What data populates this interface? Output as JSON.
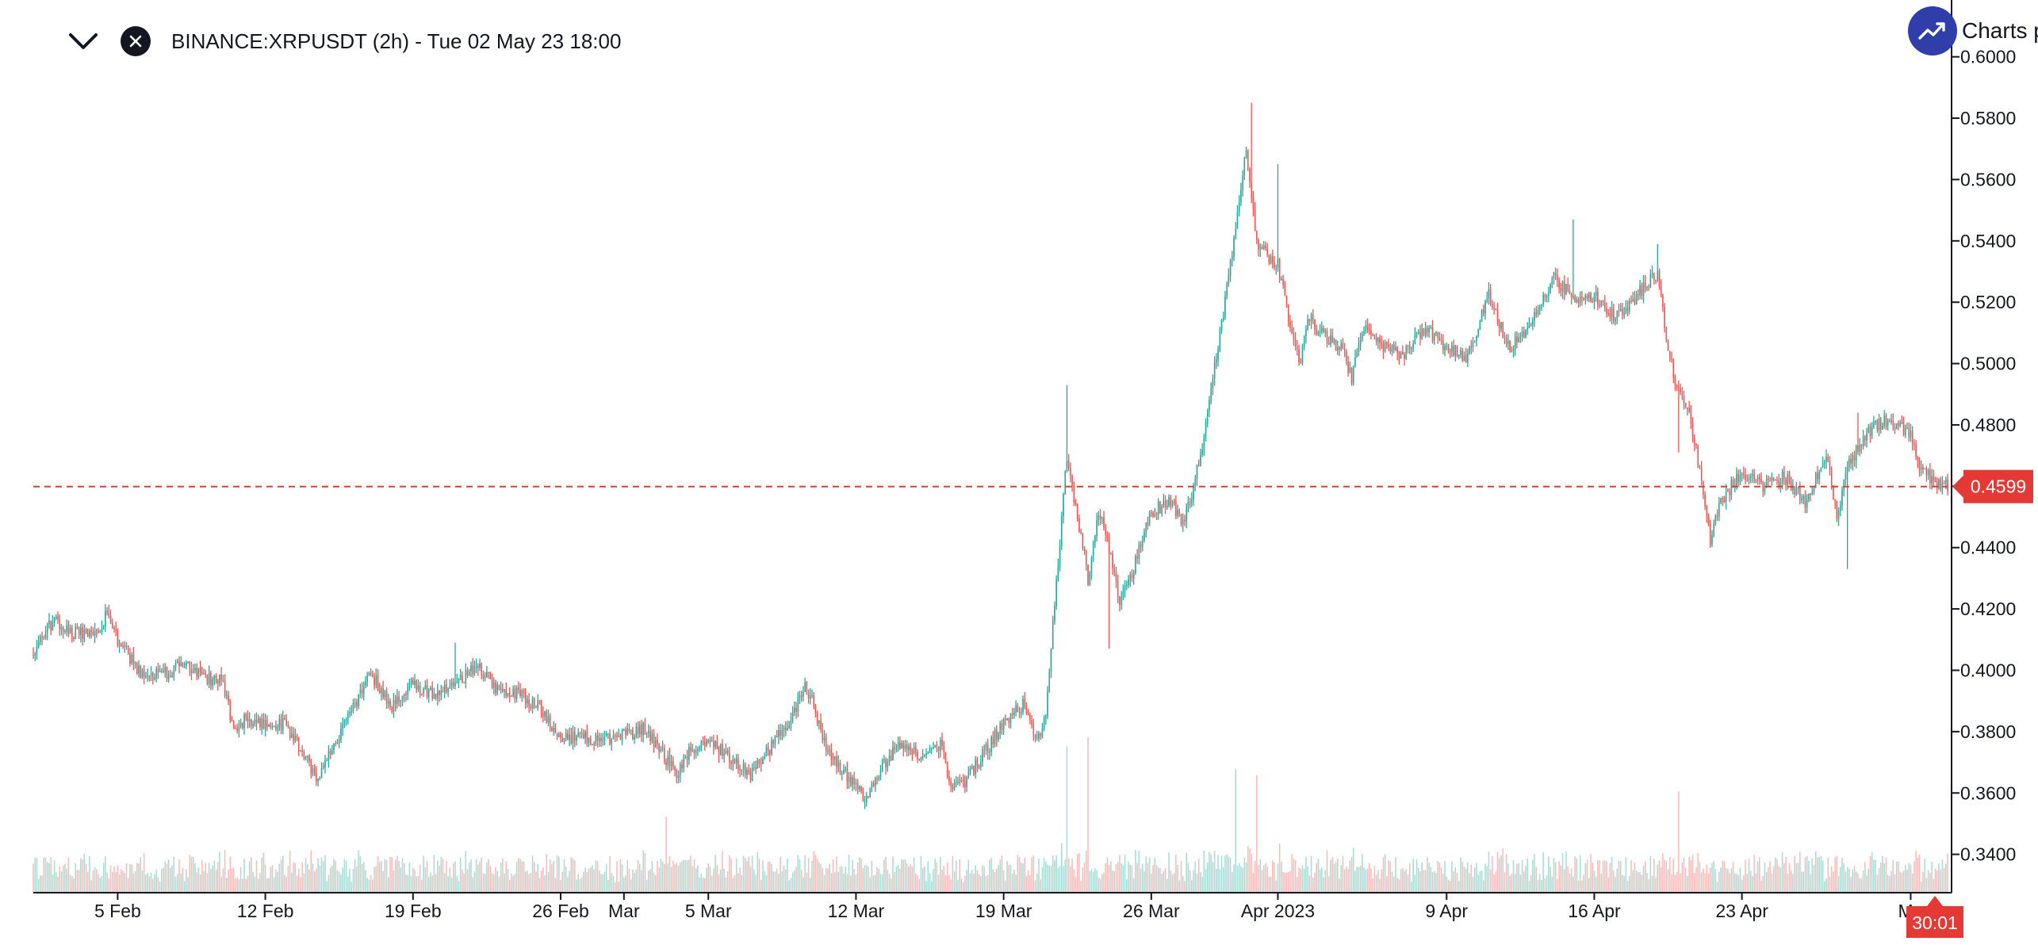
{
  "header": {
    "collapse_icon": "chevron-down-icon",
    "close_icon": "close-icon",
    "symbol_title": "BINANCE:XRPUSDT (2h) - Tue 02 May 23 18:00"
  },
  "brand": {
    "icon": "trend-up-icon",
    "label": "Charts p"
  },
  "colors": {
    "up": "#26a69a",
    "down": "#ef5350",
    "up_volume": "#a8dcd4",
    "down_volume": "#f7bcba",
    "price_line": "#e53935",
    "axis": "#131722",
    "text": "#131722"
  },
  "chart_data": {
    "type": "candlestick",
    "symbol": "BINANCE:XRPUSDT",
    "interval": "2h",
    "y_ticks": [
      "0.6000",
      "0.5800",
      "0.5600",
      "0.5400",
      "0.5200",
      "0.5000",
      "0.4800",
      "0.4600",
      "0.4400",
      "0.4200",
      "0.4000",
      "0.3800",
      "0.3600",
      "0.3400"
    ],
    "x_ticks": [
      {
        "label": "5 Feb",
        "date": "2023-02-05"
      },
      {
        "label": "12 Feb",
        "date": "2023-02-12"
      },
      {
        "label": "19 Feb",
        "date": "2023-02-19"
      },
      {
        "label": "26 Feb",
        "date": "2023-02-26"
      },
      {
        "label": "Mar",
        "date": "2023-03-01"
      },
      {
        "label": "5 Mar",
        "date": "2023-03-05"
      },
      {
        "label": "12 Mar",
        "date": "2023-03-12"
      },
      {
        "label": "19 Mar",
        "date": "2023-03-19"
      },
      {
        "label": "26 Mar",
        "date": "2023-03-26"
      },
      {
        "label": "Apr 2023",
        "date": "2023-04-01"
      },
      {
        "label": "9 Apr",
        "date": "2023-04-09"
      },
      {
        "label": "16 Apr",
        "date": "2023-04-16"
      },
      {
        "label": "23 Apr",
        "date": "2023-04-23"
      },
      {
        "label": "Ma",
        "date": "2023-05-01"
      }
    ],
    "x_range": [
      "2023-02-01",
      "2023-05-02"
    ],
    "y_range": [
      0.3275,
      0.6025
    ],
    "last_price": "0.4599",
    "countdown": "30:01",
    "price_path": [
      [
        "2023-02-01",
        0.405
      ],
      [
        "2023-02-01T12",
        0.412
      ],
      [
        "2023-02-02",
        0.416
      ],
      [
        "2023-02-03",
        0.412
      ],
      [
        "2023-02-04",
        0.413
      ],
      [
        "2023-02-04T12",
        0.418
      ],
      [
        "2023-02-05",
        0.41
      ],
      [
        "2023-02-06",
        0.4
      ],
      [
        "2023-02-07",
        0.398
      ],
      [
        "2023-02-08",
        0.402
      ],
      [
        "2023-02-09",
        0.398
      ],
      [
        "2023-02-10",
        0.396
      ],
      [
        "2023-02-10T12",
        0.38
      ],
      [
        "2023-02-11",
        0.384
      ],
      [
        "2023-02-12",
        0.383
      ],
      [
        "2023-02-13",
        0.382
      ],
      [
        "2023-02-14",
        0.37
      ],
      [
        "2023-02-14T12",
        0.365
      ],
      [
        "2023-02-15",
        0.372
      ],
      [
        "2023-02-16",
        0.385
      ],
      [
        "2023-02-17",
        0.399
      ],
      [
        "2023-02-18",
        0.388
      ],
      [
        "2023-02-19",
        0.396
      ],
      [
        "2023-02-20",
        0.392
      ],
      [
        "2023-02-21",
        0.395
      ],
      [
        "2023-02-22",
        0.402
      ],
      [
        "2023-02-23",
        0.394
      ],
      [
        "2023-02-24",
        0.392
      ],
      [
        "2023-02-25",
        0.388
      ],
      [
        "2023-02-26",
        0.378
      ],
      [
        "2023-02-27",
        0.378
      ],
      [
        "2023-02-28",
        0.377
      ],
      [
        "2023-03-01",
        0.379
      ],
      [
        "2023-03-02",
        0.381
      ],
      [
        "2023-03-03",
        0.371
      ],
      [
        "2023-03-03T12",
        0.366
      ],
      [
        "2023-03-04",
        0.373
      ],
      [
        "2023-03-05",
        0.377
      ],
      [
        "2023-03-06",
        0.372
      ],
      [
        "2023-03-07",
        0.366
      ],
      [
        "2023-03-08",
        0.375
      ],
      [
        "2023-03-09",
        0.385
      ],
      [
        "2023-03-09T12",
        0.395
      ],
      [
        "2023-03-10",
        0.389
      ],
      [
        "2023-03-10T12",
        0.376
      ],
      [
        "2023-03-11",
        0.37
      ],
      [
        "2023-03-12",
        0.362
      ],
      [
        "2023-03-12T12",
        0.358
      ],
      [
        "2023-03-13",
        0.366
      ],
      [
        "2023-03-14",
        0.376
      ],
      [
        "2023-03-15",
        0.372
      ],
      [
        "2023-03-16",
        0.376
      ],
      [
        "2023-03-16T12",
        0.363
      ],
      [
        "2023-03-17",
        0.362
      ],
      [
        "2023-03-18",
        0.372
      ],
      [
        "2023-03-19",
        0.383
      ],
      [
        "2023-03-20",
        0.389
      ],
      [
        "2023-03-20T12",
        0.376
      ],
      [
        "2023-03-21",
        0.385
      ],
      [
        "2023-03-21T12",
        0.429
      ],
      [
        "2023-03-22",
        0.47
      ],
      [
        "2023-03-22T12",
        0.45
      ],
      [
        "2023-03-23",
        0.43
      ],
      [
        "2023-03-23T12",
        0.452
      ],
      [
        "2023-03-24",
        0.44
      ],
      [
        "2023-03-24T12",
        0.422
      ],
      [
        "2023-03-25",
        0.43
      ],
      [
        "2023-03-26",
        0.452
      ],
      [
        "2023-03-27",
        0.455
      ],
      [
        "2023-03-27T12",
        0.447
      ],
      [
        "2023-03-28",
        0.46
      ],
      [
        "2023-03-28T12",
        0.476
      ],
      [
        "2023-03-29",
        0.5
      ],
      [
        "2023-03-29T12",
        0.52
      ],
      [
        "2023-03-30",
        0.545
      ],
      [
        "2023-03-30T12",
        0.57
      ],
      [
        "2023-03-31",
        0.54
      ],
      [
        "2023-03-31T12",
        0.535
      ],
      [
        "2023-04-01",
        0.532
      ],
      [
        "2023-04-01T12",
        0.515
      ],
      [
        "2023-04-02",
        0.5
      ],
      [
        "2023-04-02T12",
        0.515
      ],
      [
        "2023-04-03",
        0.51
      ],
      [
        "2023-04-04",
        0.505
      ],
      [
        "2023-04-04T12",
        0.495
      ],
      [
        "2023-04-05",
        0.512
      ],
      [
        "2023-04-06",
        0.505
      ],
      [
        "2023-04-07",
        0.503
      ],
      [
        "2023-04-08",
        0.512
      ],
      [
        "2023-04-09",
        0.505
      ],
      [
        "2023-04-10",
        0.502
      ],
      [
        "2023-04-11",
        0.522
      ],
      [
        "2023-04-12",
        0.505
      ],
      [
        "2023-04-13",
        0.512
      ],
      [
        "2023-04-14",
        0.528
      ],
      [
        "2023-04-15",
        0.522
      ],
      [
        "2023-04-16",
        0.522
      ],
      [
        "2023-04-17",
        0.515
      ],
      [
        "2023-04-18",
        0.522
      ],
      [
        "2023-04-19",
        0.53
      ],
      [
        "2023-04-19T12",
        0.505
      ],
      [
        "2023-04-20",
        0.49
      ],
      [
        "2023-04-20T12",
        0.485
      ],
      [
        "2023-04-21",
        0.465
      ],
      [
        "2023-04-21T12",
        0.442
      ],
      [
        "2023-04-22",
        0.455
      ],
      [
        "2023-04-23",
        0.465
      ],
      [
        "2023-04-24",
        0.46
      ],
      [
        "2023-04-25",
        0.463
      ],
      [
        "2023-04-26",
        0.455
      ],
      [
        "2023-04-27",
        0.47
      ],
      [
        "2023-04-27T12",
        0.45
      ],
      [
        "2023-04-28",
        0.466
      ],
      [
        "2023-04-29",
        0.478
      ],
      [
        "2023-04-30",
        0.482
      ],
      [
        "2023-05-01",
        0.476
      ],
      [
        "2023-05-01T12",
        0.465
      ],
      [
        "2023-05-02",
        0.462
      ],
      [
        "2023-05-02T18",
        0.4599
      ]
    ],
    "notable_wicks": [
      {
        "date": "2023-02-21",
        "high": 0.409
      },
      {
        "date": "2023-03-22",
        "high": 0.493
      },
      {
        "date": "2023-03-24",
        "low": 0.407
      },
      {
        "date": "2023-03-30T18",
        "high": 0.585
      },
      {
        "date": "2023-04-01",
        "high": 0.565
      },
      {
        "date": "2023-04-15",
        "high": 0.547
      },
      {
        "date": "2023-04-19",
        "high": 0.539
      },
      {
        "date": "2023-04-20",
        "low": 0.471
      },
      {
        "date": "2023-04-28",
        "low": 0.433
      },
      {
        "date": "2023-04-28T12",
        "high": 0.484
      }
    ],
    "volume_peaks": [
      {
        "date": "2023-03-22",
        "relative": 0.92
      },
      {
        "date": "2023-03-23",
        "relative": 0.98
      },
      {
        "date": "2023-03-30",
        "relative": 0.78
      },
      {
        "date": "2023-03-31",
        "relative": 0.74
      },
      {
        "date": "2023-04-20",
        "relative": 0.64
      },
      {
        "date": "2023-03-03",
        "relative": 0.48
      }
    ]
  }
}
